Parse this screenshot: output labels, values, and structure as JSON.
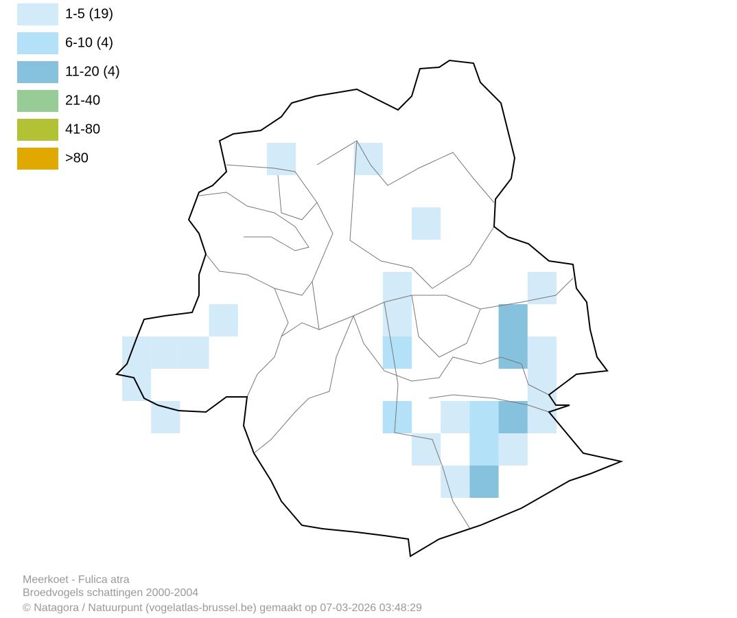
{
  "legend": [
    {
      "label": "1-5 (19)",
      "color": "#d3eaf8"
    },
    {
      "label": "6-10 (4)",
      "color": "#b3e1f7"
    },
    {
      "label": "11-20 (4)",
      "color": "#86c2de"
    },
    {
      "label": "21-40",
      "color": "#98cc96"
    },
    {
      "label": "41-80",
      "color": "#b3c135"
    },
    {
      "label": ">80",
      "color": "#e0a800"
    }
  ],
  "footer": {
    "species": "Meerkoet - Fulica atra",
    "subtitle": "Broedvogels schattingen 2000-2004",
    "credit": "© Natagora / Natuurpunt (vogelatlas-brussel.be) gemaakt op 07-03-2026 03:48:29"
  }
}
